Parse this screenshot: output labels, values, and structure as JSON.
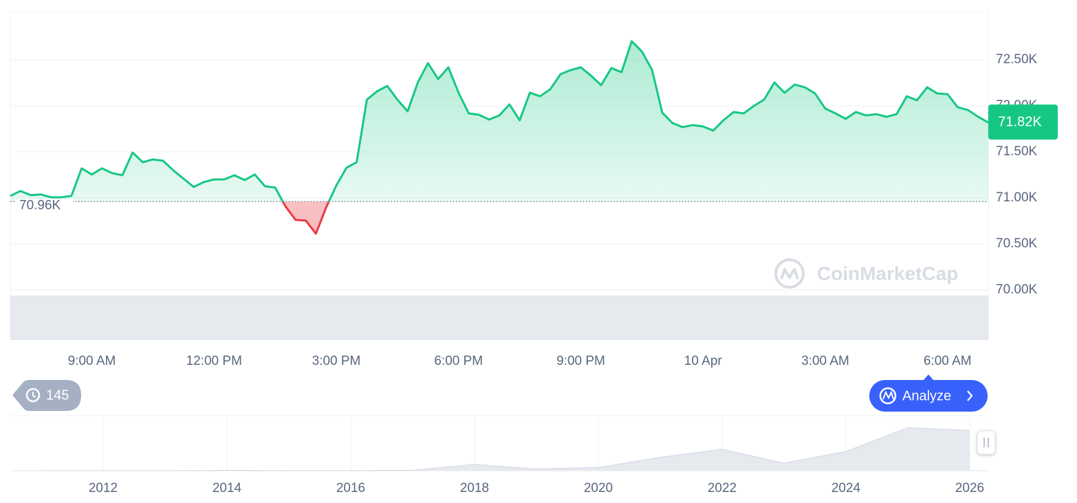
{
  "chart_data": [
    {
      "type": "line",
      "categories": [
        null,
        null,
        null,
        null,
        null,
        null,
        null,
        null,
        "9:00 AM",
        null,
        null,
        null,
        null,
        null,
        null,
        null,
        null,
        null,
        null,
        null,
        "12:00 PM",
        null,
        null,
        null,
        null,
        null,
        null,
        null,
        null,
        null,
        null,
        null,
        "3:00 PM",
        null,
        null,
        null,
        null,
        null,
        null,
        null,
        null,
        null,
        null,
        null,
        "6:00 PM",
        null,
        null,
        null,
        null,
        null,
        null,
        null,
        null,
        null,
        null,
        null,
        "9:00 PM",
        null,
        null,
        null,
        null,
        null,
        null,
        null,
        null,
        null,
        null,
        null,
        "10 Apr",
        null,
        null,
        null,
        null,
        null,
        null,
        null,
        null,
        null,
        null,
        null,
        "3:00 AM",
        null,
        null,
        null,
        null,
        null,
        null,
        null,
        null,
        null,
        null,
        null,
        "6:00 AM",
        null,
        null,
        null,
        null
      ],
      "values": [
        71022,
        71075,
        71030,
        71037,
        71007,
        71007,
        71022,
        71321,
        71254,
        71321,
        71269,
        71246,
        71493,
        71388,
        71418,
        71403,
        71299,
        71209,
        71119,
        71172,
        71201,
        71201,
        71246,
        71194,
        71254,
        71127,
        71112,
        70910,
        70761,
        70754,
        70612,
        70896,
        71134,
        71328,
        71388,
        72067,
        72157,
        72216,
        72067,
        71940,
        72254,
        72463,
        72291,
        72418,
        72142,
        71918,
        71903,
        71851,
        71896,
        72015,
        71843,
        72142,
        72104,
        72179,
        72343,
        72388,
        72418,
        72328,
        72224,
        72410,
        72366,
        72701,
        72590,
        72388,
        71925,
        71813,
        71769,
        71791,
        71776,
        71731,
        71843,
        71933,
        71918,
        72000,
        72067,
        72254,
        72142,
        72231,
        72201,
        72134,
        71970,
        71918,
        71858,
        71933,
        71896,
        71910,
        71881,
        71910,
        72104,
        72060,
        72201,
        72134,
        72127,
        71985,
        71955,
        71881,
        71820
      ],
      "color": "#16c784",
      "down_color": "#ea3943",
      "baseline": {
        "value": 70960,
        "label": "70.96K"
      },
      "last_price": {
        "value": 71820,
        "label": "71.82K"
      },
      "ylim": [
        70000,
        73015
      ],
      "yticks": [
        {
          "value": 70000,
          "label": "70.00K"
        },
        {
          "value": 70500,
          "label": "70.50K"
        },
        {
          "value": 71000,
          "label": "71.00K"
        },
        {
          "value": 71500,
          "label": "71.50K"
        },
        {
          "value": 72000,
          "label": "72.00K"
        },
        {
          "value": 72500,
          "label": "72.50K"
        }
      ],
      "grid": true
    },
    {
      "type": "area",
      "x": [
        2011,
        2012,
        2013,
        2014,
        2015,
        2016,
        2017,
        2018,
        2019,
        2020,
        2021,
        2022,
        2023,
        2024,
        2025,
        2026
      ],
      "values": [
        0.3,
        5,
        13,
        800,
        300,
        430,
        1000,
        14000,
        3700,
        7200,
        29000,
        47000,
        16500,
        42000,
        94000,
        88000
      ],
      "color": "#cfd6e4",
      "xlim": [
        2010.5,
        2026.3
      ],
      "ylim": [
        0,
        120000
      ],
      "xticks": [
        2012,
        2014,
        2016,
        2018,
        2020,
        2022,
        2024,
        2026
      ],
      "grid": true
    }
  ],
  "watermark": "CoinMarketCap",
  "history_count": 145,
  "analyze_button": "Analyze"
}
